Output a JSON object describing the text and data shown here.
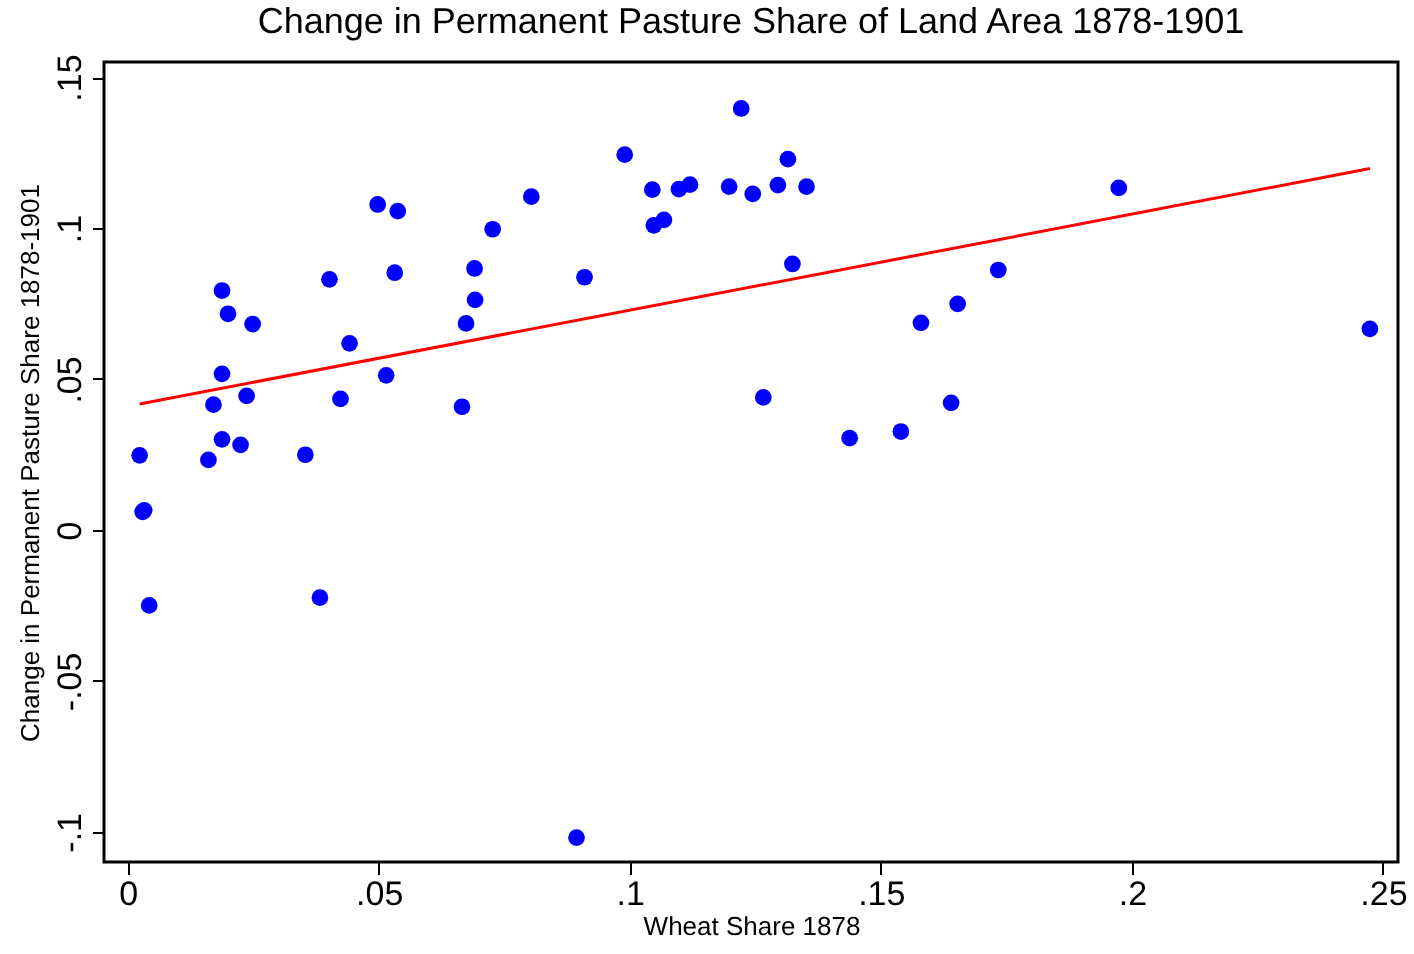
{
  "chart_data": {
    "type": "scatter",
    "title": "Change in Permanent Pasture Share of Land Area 1878-1901",
    "xlabel": "Wheat Share 1878",
    "ylabel": "Change in Permanent Pasture Share 1878-1901",
    "xlim": [
      -0.0047,
      0.253
    ],
    "ylim": [
      -0.11,
      0.155
    ],
    "xticks": [
      0,
      {
        "value": 0.05,
        "label": ".05"
      },
      {
        "value": 0.1,
        "label": ".1"
      },
      {
        "value": 0.15,
        "label": ".15"
      },
      {
        "value": 0.2,
        "label": ".2"
      },
      {
        "value": 0.25,
        "label": ".25"
      }
    ],
    "yticks": [
      {
        "value": -0.1,
        "label": "-.1"
      },
      {
        "value": -0.05,
        "label": "-.05"
      },
      0,
      {
        "value": 0.05,
        "label": ".05"
      },
      {
        "value": 0.1,
        "label": ".1"
      },
      {
        "value": 0.15,
        "label": ".15"
      }
    ],
    "grid": false,
    "marker": "circle",
    "series": [
      {
        "color": "#0000ff",
        "x": [
          0.0024,
          0.003,
          0.0033,
          0.0043,
          0.0161,
          0.0171,
          0.0188,
          0.02,
          0.0188,
          0.0188,
          0.0225,
          0.0237,
          0.0249,
          0.0354,
          0.0383,
          0.0402,
          0.0424,
          0.0442,
          0.0498,
          0.0538,
          0.0532,
          0.0515,
          0.0666,
          0.0674,
          0.0692,
          0.0691,
          0.0727,
          0.0804,
          0.091,
          0.099,
          0.1045,
          0.1048,
          0.1068,
          0.1098,
          0.112,
          0.1198,
          0.1222,
          0.1245,
          0.1295,
          0.1315,
          0.1352,
          0.1324,
          0.1266,
          0.1438,
          0.154,
          0.164,
          0.158,
          0.1653,
          0.1734,
          0.1974,
          0.2474,
          0.0894
        ],
        "values": [
          0.0247,
          0.006,
          0.0065,
          -0.025,
          0.0232,
          0.0415,
          0.0793,
          0.0716,
          0.0517,
          0.03,
          0.0282,
          0.0444,
          0.0682,
          0.0249,
          -0.0224,
          0.083,
          0.0434,
          0.0618,
          0.1078,
          0.1056,
          0.0852,
          0.0512,
          0.0408,
          0.0684,
          0.0762,
          0.0866,
          0.0996,
          0.1104,
          0.0837,
          0.1243,
          0.1127,
          0.1009,
          0.1027,
          0.1129,
          0.1144,
          0.1137,
          0.1396,
          0.1113,
          0.1142,
          0.1228,
          0.1137,
          0.0881,
          0.0439,
          0.0304,
          0.0326,
          0.0421,
          0.0686,
          0.0749,
          0.0861,
          0.1133,
          0.0666,
          -0.1019
        ]
      },
      {
        "type": "line",
        "color": "#ff0000",
        "marker": "none",
        "x": [
          0.0024,
          0.2474
        ],
        "values": [
          0.0417,
          0.1197
        ]
      }
    ]
  }
}
